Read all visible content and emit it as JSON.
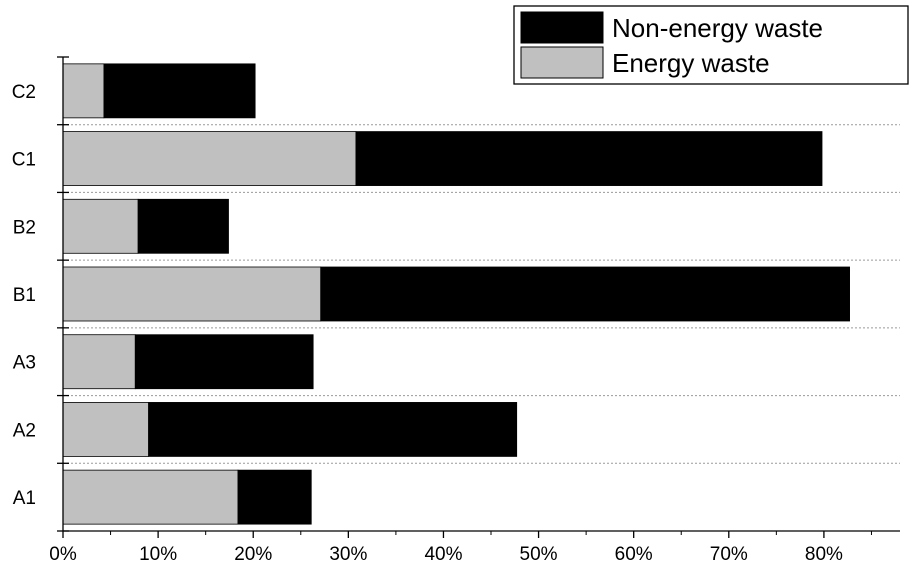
{
  "chart_data": {
    "type": "bar",
    "orientation": "horizontal",
    "stacked": true,
    "categories": [
      "A1",
      "A2",
      "A3",
      "B1",
      "B2",
      "C1",
      "C2"
    ],
    "series": [
      {
        "name": "Energy waste",
        "color": "#c0c0c0",
        "values": [
          18.4,
          9.0,
          7.6,
          27.1,
          7.9,
          30.8,
          4.3
        ]
      },
      {
        "name": "Non-energy waste",
        "color": "#000000",
        "values": [
          7.7,
          38.7,
          18.7,
          55.6,
          9.5,
          49.0,
          15.9
        ]
      }
    ],
    "xlim": [
      0,
      88
    ],
    "xticks": [
      0,
      10,
      20,
      30,
      40,
      50,
      60,
      70,
      80
    ],
    "xtick_labels": [
      "0%",
      "10%",
      "20%",
      "30%",
      "40%",
      "50%",
      "60%",
      "70%",
      "80%"
    ],
    "grid": "horizontal dotted",
    "legend": {
      "position": "top-right",
      "entries": [
        "Non-energy waste",
        "Energy waste"
      ]
    }
  }
}
